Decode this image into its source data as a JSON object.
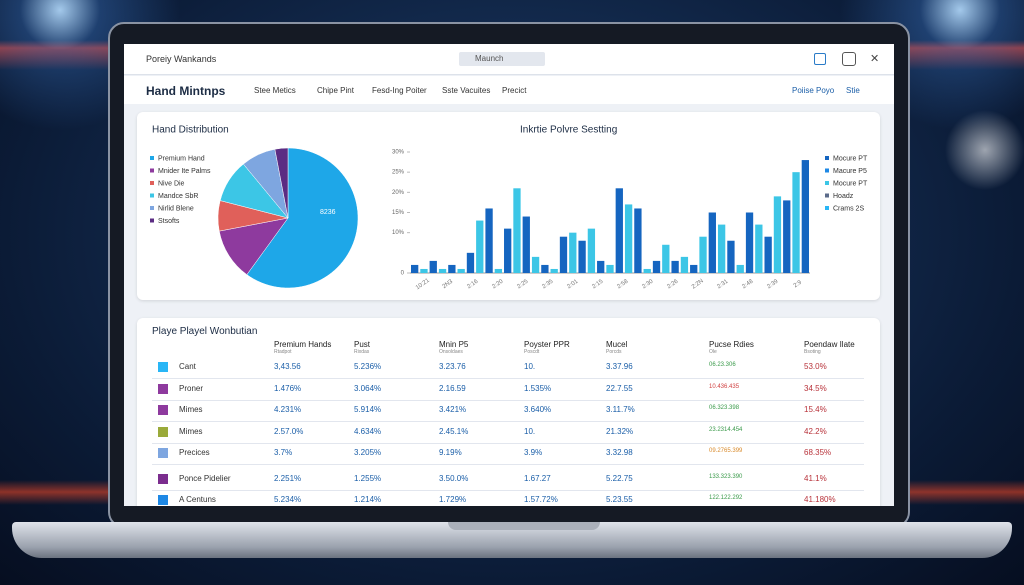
{
  "topbar": {
    "brand": "Poreiy Wankands",
    "search": "Maunch"
  },
  "nav": {
    "title": "Hand Mintnps",
    "tabs": [
      "Stee Metics",
      "Chipe Pint",
      "Fesd-Ing Poiter",
      "Sste Vacuites",
      "Precict"
    ],
    "user": "Poiise Poyo",
    "settings": "Stie"
  },
  "chart_data": [
    {
      "type": "pie",
      "title": "Hand Distribution",
      "annotation": "8236",
      "categories": [
        "Premium Hand",
        "Mnider Ite Palms",
        "Nive Die",
        "Mandce SbR",
        "Nirlid Blene",
        "Stsofts"
      ],
      "values": [
        60,
        12,
        7,
        10,
        8,
        3
      ],
      "colors": [
        "#1ea7e8",
        "#8e3a9e",
        "#e0605a",
        "#3cc6e6",
        "#7ea6e0",
        "#5b2c83"
      ]
    },
    {
      "type": "bar",
      "title": "Inkrtie Polvre Sestting",
      "values": [
        2,
        1,
        3,
        1,
        2,
        1,
        5,
        13,
        16,
        1,
        11,
        21,
        14,
        4,
        2,
        1,
        9,
        10,
        8,
        11,
        3,
        2,
        21,
        17,
        16,
        1,
        3,
        7,
        3,
        4,
        2,
        9,
        15,
        12,
        8,
        2,
        15,
        12,
        9,
        19,
        18,
        25,
        28
      ],
      "colors": [
        "#1565c0",
        "#3cc6e6"
      ],
      "ylim": [
        0,
        30
      ],
      "yticks": [
        0,
        {
          "value": 10,
          "label": "10%"
        },
        {
          "value": 15,
          "label": "15%"
        },
        {
          "value": 20,
          "label": "20%"
        },
        {
          "value": 25,
          "label": "25%"
        },
        {
          "value": 30,
          "label": "30%"
        }
      ],
      "x_labels": [
        "10:21",
        "2N3",
        "2:16",
        "2:20",
        "2:25",
        "2:35",
        "2:01",
        "2:15",
        "2:58",
        "2:30",
        "2:26",
        "2:2N",
        "2:31",
        "2:48",
        "2:39",
        "2:9"
      ],
      "legend": [
        {
          "name": "Mocure PT",
          "color": "#1565c0"
        },
        {
          "name": "Macure P5",
          "color": "#1e88e5"
        },
        {
          "name": "Mocure PT",
          "color": "#3cc6e6"
        },
        {
          "name": "Hoadz",
          "color": "#5b6b8a"
        },
        {
          "name": "Crams 2S",
          "color": "#29b6f6"
        }
      ]
    }
  ],
  "table": {
    "title": "Playe Playel Wonbutian",
    "columns": [
      "Premium Hands",
      "Pust",
      "Mnin P5",
      "Poyster PPR",
      "Mucel",
      "Pucse Rdies",
      "Poendaw Ilate"
    ],
    "subcolumns": [
      "Rtadpot",
      "Rixdas",
      "Onsoldaes",
      "Poscdt",
      "Porcds",
      "Ole",
      "Bsoting"
    ],
    "rows": [
      [
        "Cant",
        "3,43.56",
        "5.236%",
        "3.23.76",
        "10.",
        "3.37.96",
        "06.23.306",
        "53.0%"
      ],
      [
        "Proner",
        "1.476%",
        "3.064%",
        "2.16.59",
        "1.535%",
        "22.7.55",
        "10.436.435",
        "34.5%"
      ],
      [
        "Mimes",
        "4.231%",
        "5.914%",
        "3.421%",
        "3.640%",
        "3.11.7%",
        "06.323.398",
        "15.4%"
      ],
      [
        "Mimes",
        "2.57.0%",
        "4.634%",
        "2.45.1%",
        "10.",
        "21.32%",
        "23.2314.454",
        "42.2%"
      ],
      [
        "Precices",
        "3.7%",
        "3.205%",
        "9.19%",
        "3.9%",
        "3.32.98",
        "09.2765.399",
        "68.35%"
      ],
      [
        "Ponce Pidelier",
        "2.251%",
        "1.255%",
        "3.50.0%",
        "1.67.27",
        "5.22.75",
        "133.323.390",
        "41.1%"
      ],
      [
        "A Centuns",
        "5.234%",
        "1.214%",
        "1.729%",
        "1.57.72%",
        "5.23.55",
        "122.122.292",
        "41.180%"
      ]
    ],
    "row_colors": [
      "#29b6f6",
      "#8e3a9e",
      "#8e3a9e",
      "#9aaa3a",
      "#7ea6e0",
      "#7b2d8e",
      "#1e88e5"
    ]
  }
}
